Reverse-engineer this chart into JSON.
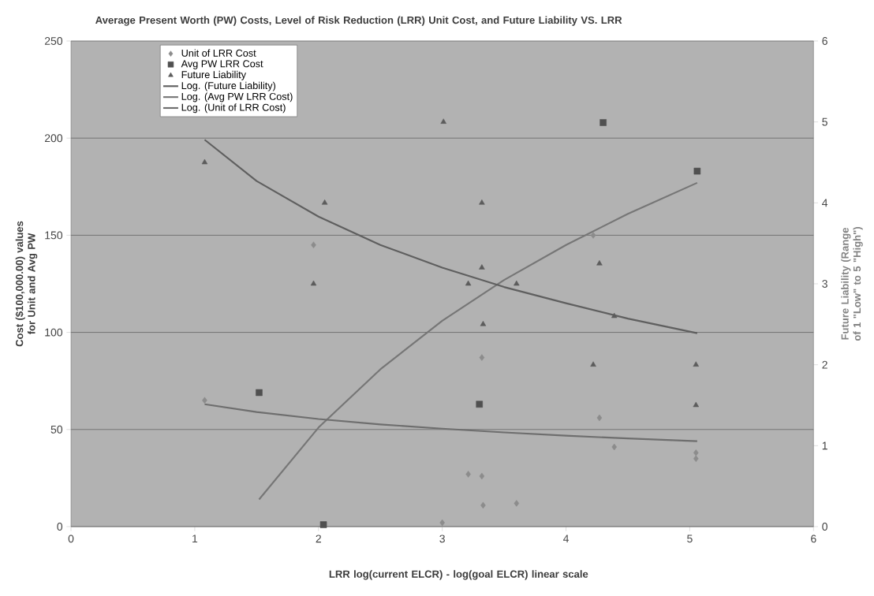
{
  "chart_data": {
    "type": "scatter",
    "title": "Average Present Worth (PW) Costs, Level of Risk Reduction (LRR) Unit Cost, and Future Liability VS. LRR",
    "xlabel": "LRR log(current ELCR) - log(goal ELCR) linear scale",
    "ylabel": "Cost ($100,000.00) values for Unit and Avg PW",
    "y2label": "Future Liability (Range of 1 \"Low\" to 5 \"High\")",
    "xlim": [
      0,
      6
    ],
    "xticks": [
      0,
      1,
      2,
      3,
      4,
      5,
      6
    ],
    "ylim": [
      0,
      250
    ],
    "yticks": [
      0,
      50,
      100,
      150,
      200,
      250
    ],
    "y2lim": [
      0,
      6
    ],
    "y2ticks": [
      0,
      1,
      2,
      3,
      4,
      5,
      6
    ],
    "grid": "y",
    "legend": "top left",
    "series": [
      {
        "name": "Unit of LRR Cost",
        "marker": "diamond",
        "color": "#8c8c8c",
        "x": [
          1.08,
          1.96,
          3.0,
          3.21,
          3.32,
          3.32,
          3.33,
          3.6,
          4.22,
          4.27,
          4.39,
          5.05,
          5.05
        ],
        "values": [
          65,
          145,
          2,
          27,
          26,
          87,
          11,
          12,
          150,
          56,
          41,
          38,
          35
        ]
      },
      {
        "name": "Avg PW LRR Cost",
        "marker": "square",
        "color": "#505050",
        "x": [
          1.52,
          2.04,
          3.3,
          4.3,
          5.06
        ],
        "values": [
          69,
          1,
          63,
          208,
          183
        ]
      },
      {
        "name": "Future Liability",
        "marker": "triangle",
        "color": "#5c5c5c",
        "axis": "y2",
        "x": [
          1.08,
          1.96,
          2.05,
          3.01,
          3.21,
          3.32,
          3.32,
          3.33,
          3.6,
          4.22,
          4.27,
          4.39,
          5.05,
          5.05
        ],
        "values": [
          4.5,
          3,
          4,
          5,
          3,
          4,
          3.2,
          2.5,
          3,
          2,
          3.25,
          2.6,
          2,
          1.5
        ]
      },
      {
        "name": "Log. (Future Liability)",
        "type": "line",
        "marker": "none",
        "color": "#5f5f5f",
        "axis": "y2",
        "x": [
          1.08,
          1.5,
          2,
          2.5,
          3,
          3.5,
          4,
          4.5,
          5.06
        ],
        "values": [
          4.78,
          4.27,
          3.83,
          3.48,
          3.2,
          2.96,
          2.76,
          2.57,
          2.39
        ]
      },
      {
        "name": "Log. (Avg PW LRR Cost)",
        "type": "line",
        "marker": "none",
        "color": "#767676",
        "x": [
          1.52,
          2,
          2.5,
          3,
          3.5,
          4,
          4.5,
          5.06
        ],
        "values": [
          14,
          51,
          81,
          106,
          127,
          145,
          161,
          177
        ]
      },
      {
        "name": "Log. (Unit of LRR Cost)",
        "type": "line",
        "marker": "none",
        "color": "#6e6e6e",
        "x": [
          1.08,
          1.5,
          2,
          2.5,
          3,
          3.5,
          4,
          4.5,
          5.06
        ],
        "values": [
          63,
          59,
          55.4,
          52.6,
          50.4,
          48.5,
          46.8,
          45.4,
          44
        ]
      }
    ]
  }
}
